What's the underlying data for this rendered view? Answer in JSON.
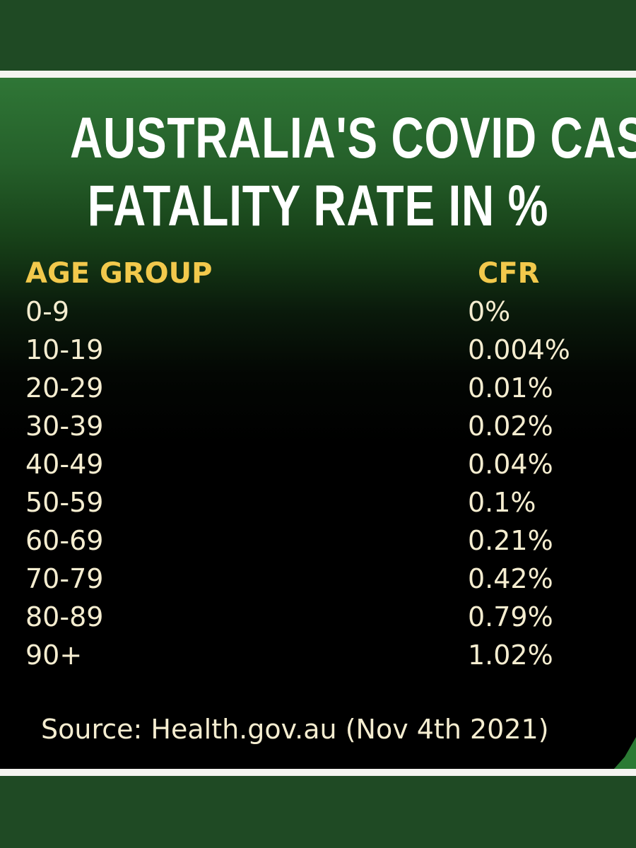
{
  "title": {
    "line1": "AUSTRALIA'S COVID CASE",
    "line2": "FATALITY RATE IN %"
  },
  "chart_data": {
    "type": "table",
    "columns": [
      "AGE GROUP",
      "CFR"
    ],
    "rows": [
      {
        "age_group": "0-9",
        "cfr": "0%"
      },
      {
        "age_group": "10-19",
        "cfr": "0.004%"
      },
      {
        "age_group": "20-29",
        "cfr": "0.01%"
      },
      {
        "age_group": "30-39",
        "cfr": "0.02%"
      },
      {
        "age_group": "40-49",
        "cfr": "0.04%"
      },
      {
        "age_group": "50-59",
        "cfr": "0.1%"
      },
      {
        "age_group": "60-69",
        "cfr": "0.21%"
      },
      {
        "age_group": "70-79",
        "cfr": "0.42%"
      },
      {
        "age_group": "80-89",
        "cfr": "0.79%"
      },
      {
        "age_group": "90+",
        "cfr": "1.02%"
      }
    ]
  },
  "source": "Source: Health.gov.au (Nov 4th 2021)",
  "colors": {
    "band_green": "#1f4a24",
    "panel_top_green": "#2f7636",
    "header_gold": "#f2c94c",
    "body_text": "#f5edd0",
    "title_text": "#ffffff"
  }
}
